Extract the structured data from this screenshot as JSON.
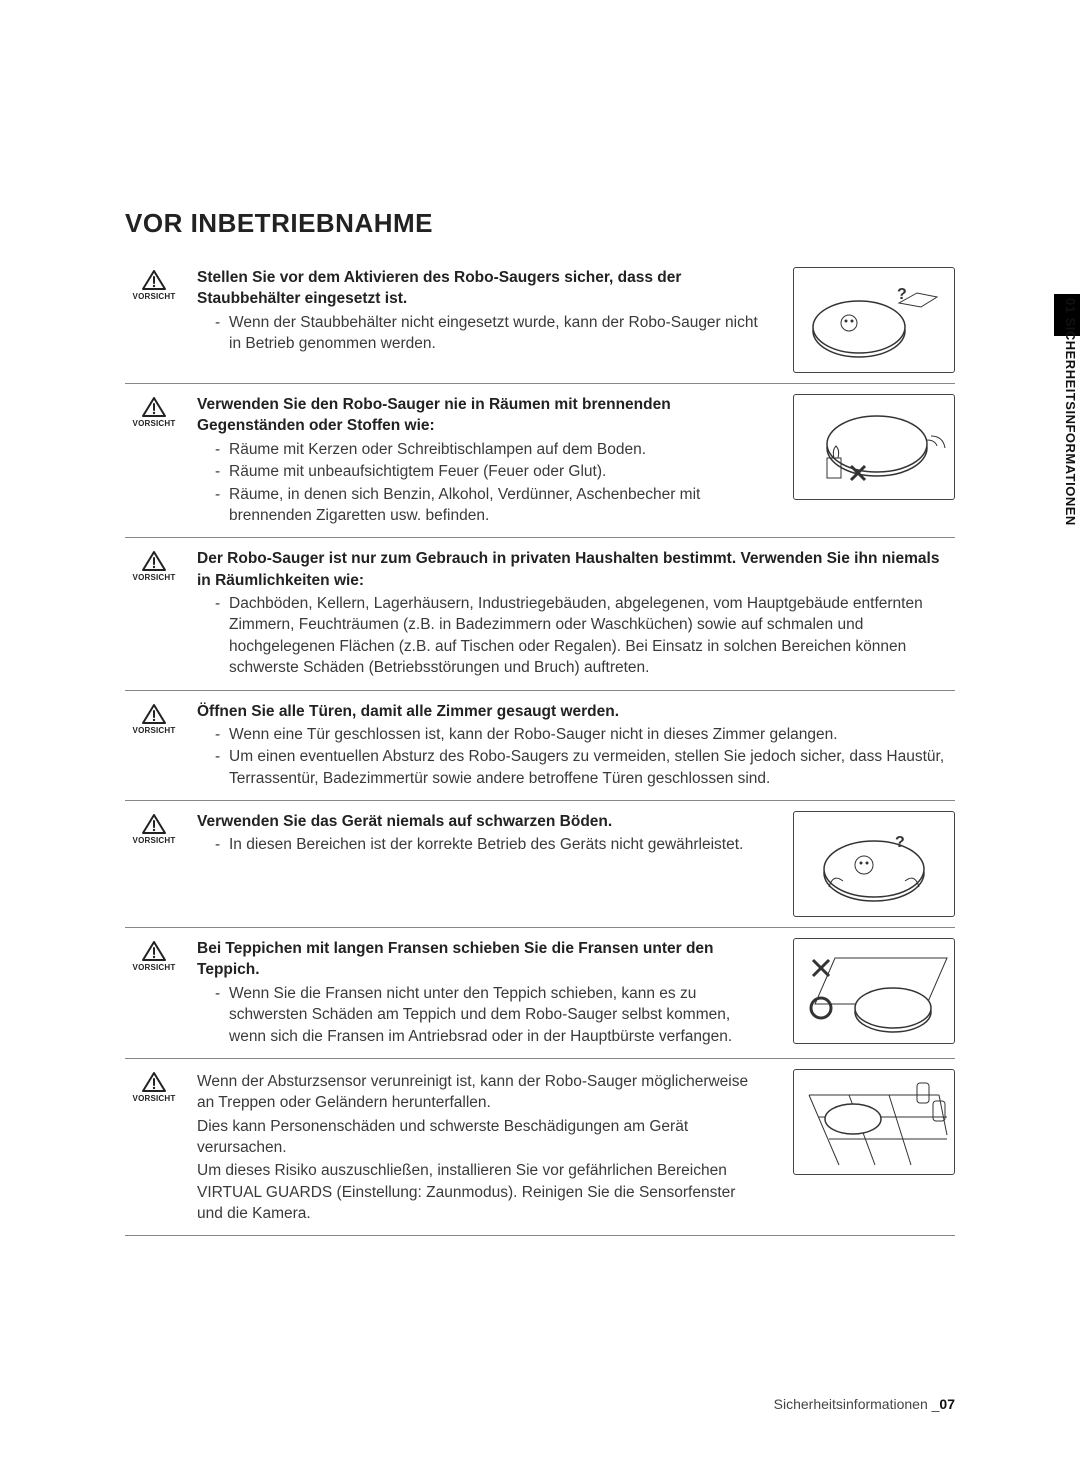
{
  "page": {
    "heading": "VOR INBETRIEBNAHME",
    "caution_label": "VORSICHT",
    "side_tab": "01 SICHERHEITSINFORMATIONEN",
    "footer_text": "Sicherheitsinformationen _",
    "footer_page": "07"
  },
  "sections": [
    {
      "headline": "Stellen Sie vor dem Aktivieren des Robo-Saugers sicher, dass der Staubbehälter eingesetzt ist.",
      "bullets": [
        "Wenn der Staubbehälter nicht eingesetzt wurde, kann der Robo-Sauger nicht in Betrieb genommen werden."
      ],
      "has_illus": true
    },
    {
      "headline": "Verwenden Sie den Robo-Sauger nie in Räumen mit brennenden Gegenständen oder Stoffen wie:",
      "bullets": [
        "Räume mit Kerzen oder Schreibtischlampen auf dem Boden.",
        "Räume mit unbeaufsichtigtem Feuer (Feuer oder Glut).",
        "Räume, in denen sich Benzin, Alkohol, Verdünner, Aschenbecher mit brennenden Zigaretten usw. befinden."
      ],
      "has_illus": true
    },
    {
      "headline": "Der Robo-Sauger ist nur zum Gebrauch in privaten Haushalten bestimmt. Verwenden Sie ihn niemals in Räumlichkeiten wie:",
      "bullets": [
        "Dachböden, Kellern, Lagerhäusern, Industriegebäuden, abgelegenen, vom Hauptgebäude entfernten Zimmern, Feuchträumen (z.B. in Badezimmern oder Waschküchen) sowie auf schmalen und hochgelegenen Flächen (z.B. auf Tischen oder Regalen). Bei Einsatz in solchen Bereichen können schwerste Schäden (Betriebsstörungen und Bruch) auftreten."
      ],
      "has_illus": false
    },
    {
      "headline": "Öffnen Sie alle Türen, damit alle Zimmer gesaugt werden.",
      "bullets": [
        "Wenn eine Tür geschlossen ist, kann der Robo-Sauger nicht in dieses Zimmer gelangen.",
        "Um einen eventuellen Absturz des Robo-Saugers zu vermeiden, stellen Sie jedoch sicher, dass Haustür, Terrassentür, Badezimmertür sowie andere betroffene Türen geschlossen sind."
      ],
      "has_illus": false
    },
    {
      "headline": "Verwenden Sie das Gerät niemals auf schwarzen Böden.",
      "bullets": [
        "In diesen Bereichen ist der korrekte Betrieb des Geräts nicht gewährleistet."
      ],
      "has_illus": true
    },
    {
      "headline": "Bei Teppichen mit langen Fransen schieben Sie die Fransen unter den Teppich.",
      "bullets": [
        "Wenn Sie die Fransen nicht unter den Teppich schieben, kann es zu schwersten Schäden am Teppich und dem Robo-Sauger selbst kommen, wenn sich die Fransen im Antriebsrad oder in der Hauptbürste verfangen."
      ],
      "has_illus": true
    },
    {
      "headline": "",
      "paras": [
        "Wenn der Absturzsensor verunreinigt ist, kann der Robo-Sauger möglicherweise an Treppen oder Geländern herunterfallen.",
        "Dies kann Personenschäden und schwerste Beschädigungen am Gerät verursachen.",
        "Um dieses Risiko auszuschließen, installieren Sie vor gefährlichen Bereichen VIRTUAL GUARDS (Einstellung: Zaunmodus). Reinigen Sie die Sensorfenster und die Kamera."
      ],
      "has_illus": true
    }
  ],
  "style": {
    "caution_icon_stroke": "#222222",
    "border_color": "#888888"
  }
}
